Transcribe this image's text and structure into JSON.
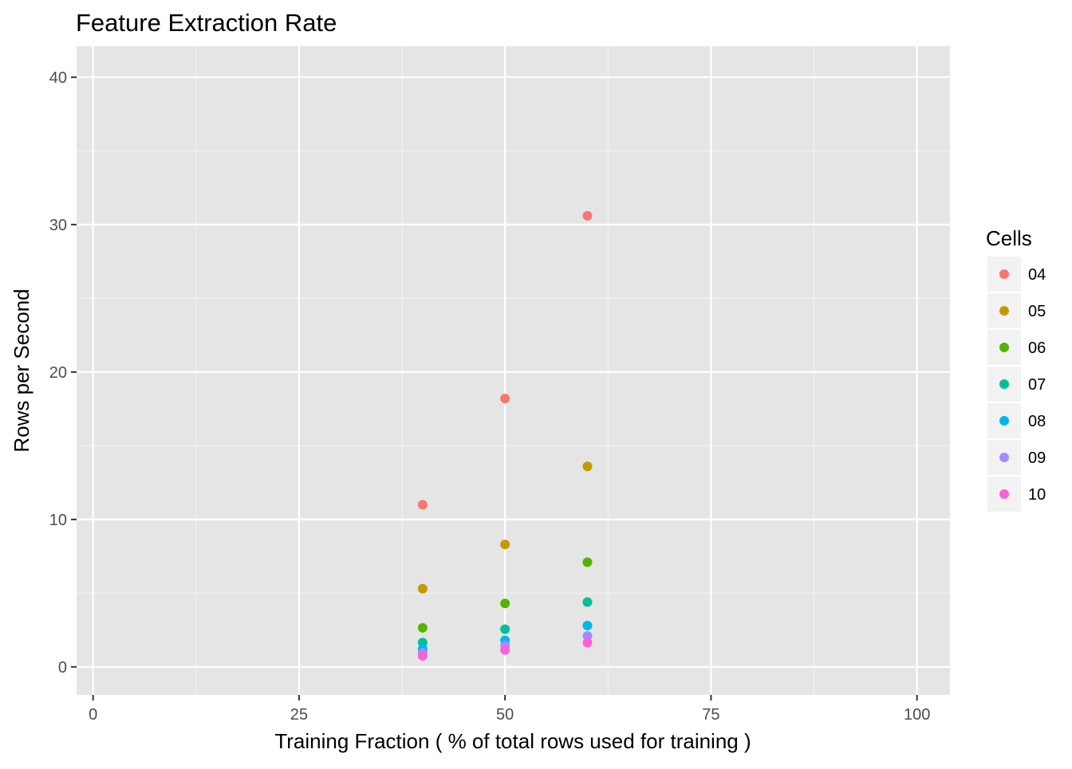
{
  "chart_data": {
    "type": "scatter",
    "title": "Feature Extraction Rate",
    "xlabel": "Training Fraction ( % of total rows used for training )",
    "ylabel": "Rows per Second",
    "xlim": [
      -2,
      104
    ],
    "ylim": [
      -1.9,
      42.1
    ],
    "x_ticks": [
      0,
      25,
      50,
      75,
      100
    ],
    "x_tick_labels": [
      "0",
      "25",
      "50",
      "75",
      "100"
    ],
    "y_ticks": [
      0,
      10,
      20,
      30,
      40
    ],
    "y_tick_labels": [
      "0",
      "10",
      "20",
      "30",
      "40"
    ],
    "grid": true,
    "legend": {
      "title": "Cells",
      "position": "right"
    },
    "series": [
      {
        "name": "04",
        "color": "#F8766D",
        "x": [
          40,
          50,
          60
        ],
        "y": [
          11.0,
          18.2,
          30.6
        ]
      },
      {
        "name": "05",
        "color": "#C49A00",
        "x": [
          40,
          50,
          60
        ],
        "y": [
          5.3,
          8.3,
          13.6
        ]
      },
      {
        "name": "06",
        "color": "#53B400",
        "x": [
          40,
          50,
          60
        ],
        "y": [
          2.65,
          4.3,
          7.1
        ]
      },
      {
        "name": "07",
        "color": "#00C094",
        "x": [
          40,
          50,
          60
        ],
        "y": [
          1.65,
          2.55,
          4.4
        ]
      },
      {
        "name": "08",
        "color": "#00B6EB",
        "x": [
          40,
          50,
          60
        ],
        "y": [
          1.2,
          1.8,
          2.8
        ]
      },
      {
        "name": "09",
        "color": "#A58AFF",
        "x": [
          40,
          50,
          60
        ],
        "y": [
          0.95,
          1.45,
          2.1
        ]
      },
      {
        "name": "10",
        "color": "#FB61D7",
        "x": [
          40,
          50,
          60
        ],
        "y": [
          0.75,
          1.15,
          1.65
        ]
      }
    ]
  }
}
